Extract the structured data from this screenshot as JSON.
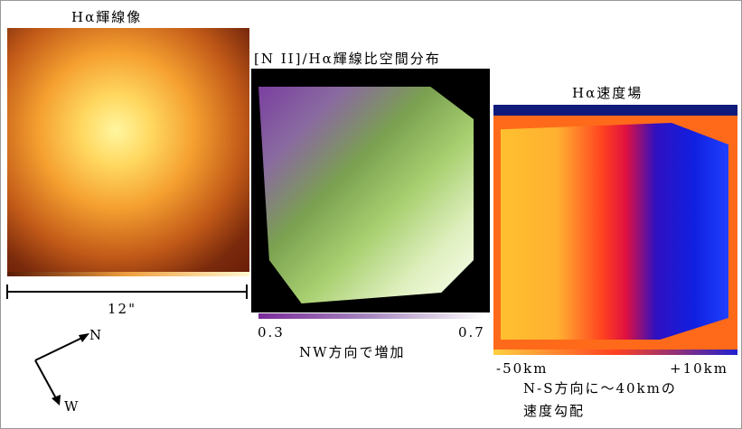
{
  "panels": [
    {
      "title": "Hα輝線像",
      "scale_label": "12\""
    },
    {
      "title": "[N II]/Hα輝線比空間分布",
      "colorbar_min": "0.3",
      "colorbar_max": "0.7",
      "note": "NW方向で増加"
    },
    {
      "title": "Hα速度場",
      "colorbar_min": "-50km",
      "colorbar_max": "+10km",
      "note_lines": [
        "N-S方向に～40kmの",
        "速度勾配"
      ]
    }
  ],
  "compass": {
    "north": "N",
    "west": "W"
  }
}
